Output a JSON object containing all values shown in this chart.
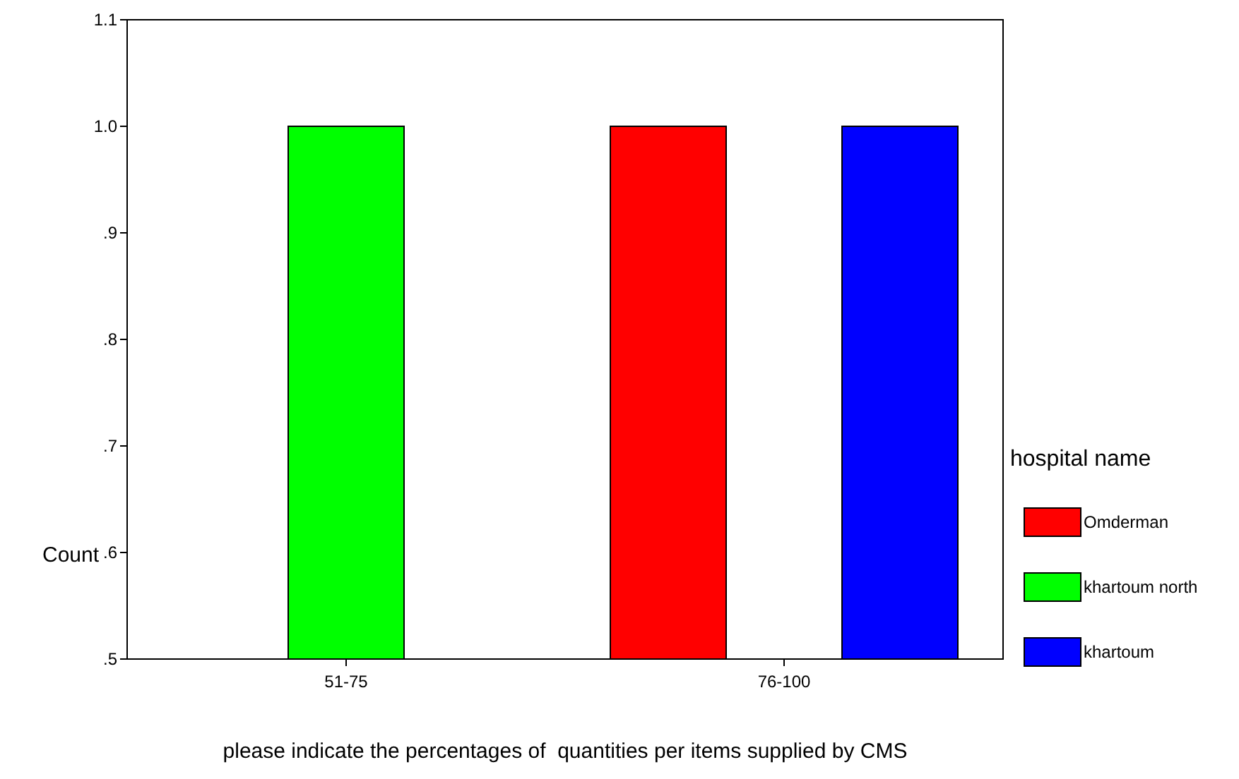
{
  "chart_data": {
    "type": "bar",
    "xlabel": "please indicate the percentages of  quantities per items supplied by CMS",
    "ylabel": "Count",
    "legend_title": "hospital name",
    "categories": [
      "51-75",
      "76-100"
    ],
    "series": [
      {
        "name": "Omderman",
        "color": "#ff0000",
        "values": [
          null,
          1.0
        ]
      },
      {
        "name": "khartoum north",
        "color": "#00ff00",
        "values": [
          1.0,
          null
        ]
      },
      {
        "name": "khartoum",
        "color": "#0000ff",
        "values": [
          null,
          1.0
        ]
      }
    ],
    "ylim": [
      0.5,
      1.1
    ],
    "yticks": [
      {
        "value": 0.5,
        "label": ".5"
      },
      {
        "value": 0.6,
        "label": ".6"
      },
      {
        "value": 0.7,
        "label": ".7"
      },
      {
        "value": 0.8,
        "label": ".8"
      },
      {
        "value": 0.9,
        "label": ".9"
      },
      {
        "value": 1.0,
        "label": "1.0"
      },
      {
        "value": 1.1,
        "label": "1.1"
      }
    ],
    "legend": "right"
  }
}
